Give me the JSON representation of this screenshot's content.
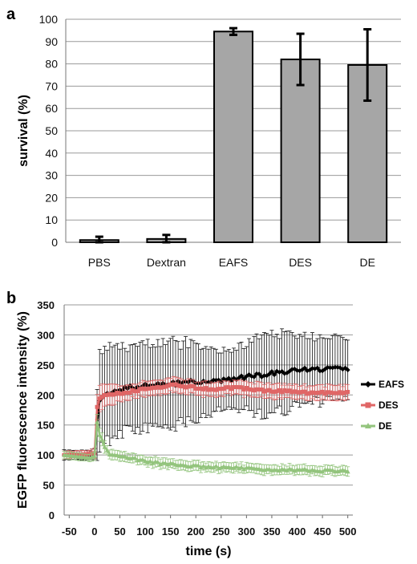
{
  "panels": {
    "a": "a",
    "b": "b"
  },
  "chart_data": [
    {
      "type": "bar",
      "panel": "a",
      "categories": [
        "PBS",
        "Dextran",
        "EAFS",
        "DES",
        "DE"
      ],
      "values": [
        1,
        1.5,
        94.5,
        82,
        79.5
      ],
      "errors": [
        1.5,
        1.8,
        1.5,
        11.5,
        16
      ],
      "xlabel": "",
      "ylabel": "survival (%)",
      "ylim": [
        0,
        100
      ],
      "yticks": [
        "0",
        "10",
        "20",
        "30",
        "40",
        "50",
        "60",
        "70",
        "80",
        "90",
        "100"
      ],
      "grid": true,
      "bar_color": "#a6a6a6"
    },
    {
      "type": "line",
      "panel": "b",
      "xlabel": "time (s)",
      "ylabel": "EGFP fluorescence intensity (%)",
      "xlim": [
        -60,
        510
      ],
      "ylim": [
        0,
        350
      ],
      "xticks": [
        "-50",
        "0",
        "50",
        "100",
        "150",
        "200",
        "250",
        "300",
        "350",
        "400",
        "450",
        "500"
      ],
      "yticks": [
        "0",
        "50",
        "100",
        "150",
        "200",
        "250",
        "300",
        "350"
      ],
      "grid": true,
      "legend": "right",
      "series": [
        {
          "name": "EAFS",
          "color": "#000000",
          "marker": "diamond",
          "x": [
            -60,
            -40,
            -20,
            -10,
            0,
            5,
            10,
            20,
            30,
            50,
            75,
            100,
            125,
            150,
            175,
            200,
            225,
            250,
            275,
            300,
            325,
            350,
            375,
            400,
            425,
            450,
            475,
            500
          ],
          "y": [
            100,
            100,
            100,
            100,
            102,
            150,
            190,
            200,
            205,
            210,
            213,
            215,
            217,
            218,
            220,
            222,
            223,
            225,
            228,
            230,
            233,
            236,
            239,
            240,
            242,
            243,
            244,
            245
          ],
          "err": [
            8,
            8,
            8,
            8,
            10,
            60,
            75,
            75,
            75,
            72,
            70,
            70,
            68,
            68,
            66,
            65,
            55,
            45,
            50,
            55,
            62,
            65,
            62,
            60,
            55,
            52,
            50,
            48
          ]
        },
        {
          "name": "DES",
          "color": "#e06666",
          "marker": "square",
          "x": [
            -60,
            -40,
            -20,
            -10,
            0,
            5,
            10,
            20,
            30,
            50,
            75,
            100,
            125,
            150,
            175,
            200,
            225,
            250,
            275,
            300,
            325,
            350,
            375,
            400,
            425,
            450,
            475,
            500
          ],
          "y": [
            100,
            101,
            101,
            102,
            103,
            180,
            195,
            198,
            200,
            203,
            206,
            210,
            212,
            218,
            215,
            212,
            210,
            210,
            212,
            210,
            208,
            206,
            206,
            205,
            203,
            204,
            203,
            205
          ],
          "err": [
            6,
            6,
            6,
            6,
            8,
            20,
            20,
            18,
            16,
            14,
            12,
            12,
            12,
            12,
            12,
            12,
            12,
            12,
            12,
            12,
            12,
            12,
            12,
            12,
            12,
            12,
            12,
            12
          ]
        },
        {
          "name": "DE",
          "color": "#93c47d",
          "marker": "triangle",
          "x": [
            -60,
            -40,
            -20,
            -10,
            0,
            5,
            10,
            20,
            30,
            50,
            75,
            100,
            125,
            150,
            175,
            200,
            225,
            250,
            275,
            300,
            325,
            350,
            375,
            400,
            425,
            450,
            475,
            500
          ],
          "y": [
            100,
            98,
            96,
            95,
            98,
            155,
            135,
            115,
            102,
            98,
            95,
            90,
            87,
            85,
            83,
            82,
            80,
            80,
            79,
            78,
            77,
            76,
            76,
            75,
            75,
            74,
            74,
            73
          ],
          "err": [
            6,
            6,
            6,
            6,
            8,
            14,
            12,
            10,
            8,
            8,
            8,
            8,
            8,
            8,
            8,
            8,
            8,
            8,
            8,
            8,
            8,
            8,
            8,
            8,
            8,
            8,
            8,
            8
          ]
        }
      ]
    }
  ]
}
